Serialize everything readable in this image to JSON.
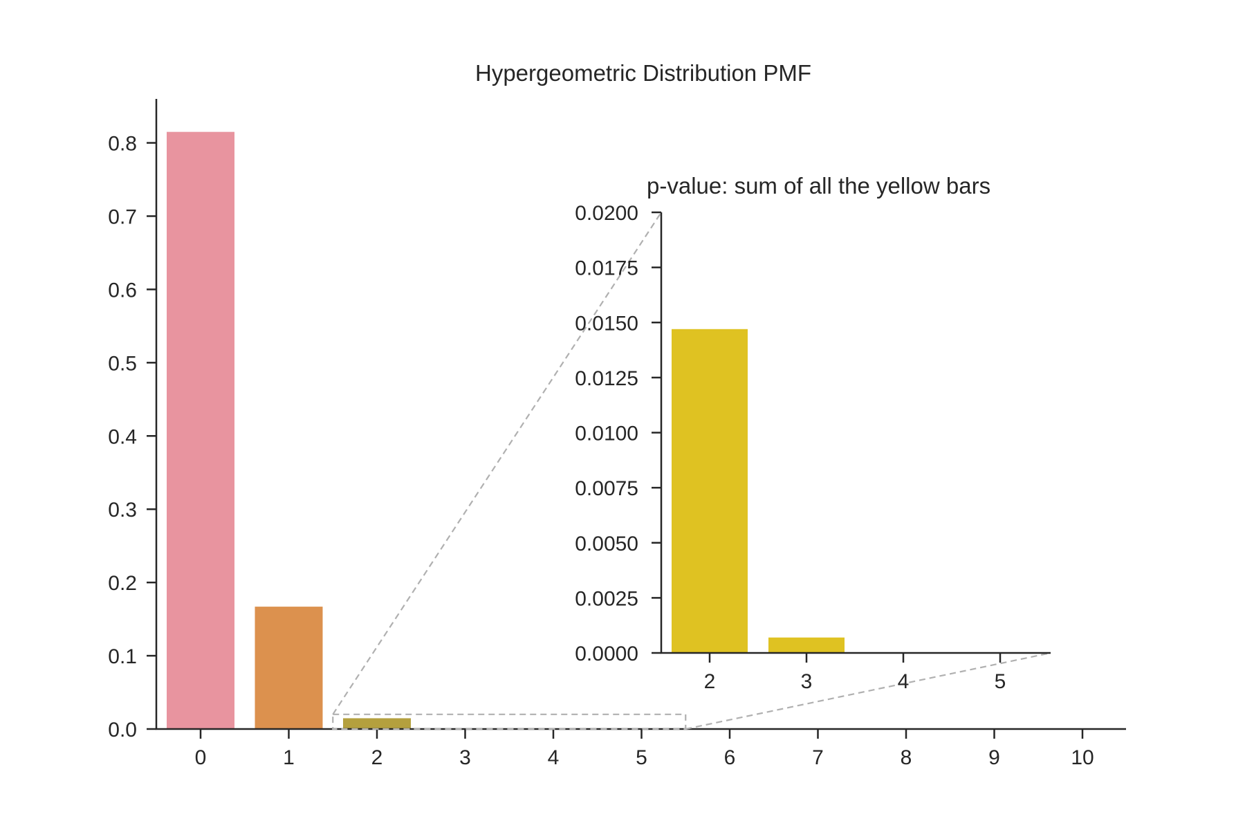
{
  "chart_data": [
    {
      "id": "main",
      "type": "bar",
      "title": "Hypergeometric Distribution PMF",
      "xlabel": "",
      "ylabel": "",
      "categories": [
        "0",
        "1",
        "2",
        "3",
        "4",
        "5",
        "6",
        "7",
        "8",
        "9",
        "10"
      ],
      "values": [
        0.815,
        0.167,
        0.0147,
        0.0007,
        0.0,
        0.0,
        0.0,
        0.0,
        0.0,
        0.0,
        0.0
      ],
      "colors": [
        "#e8949f",
        "#dc914e",
        "#b4a03e",
        "#a6a83a",
        "#8fb03a",
        "#5fb446",
        "#3db47f",
        "#3aa9a0",
        "#3ea5c2",
        "#7b9ee6",
        "#c48fe8"
      ],
      "ylim": [
        0,
        0.86
      ],
      "yticks": [
        0.0,
        0.1,
        0.2,
        0.3,
        0.4,
        0.5,
        0.6,
        0.7,
        0.8
      ],
      "ytick_labels": [
        "0.0",
        "0.1",
        "0.2",
        "0.3",
        "0.4",
        "0.5",
        "0.6",
        "0.7",
        "0.8"
      ],
      "zoom_region": {
        "x": [
          1.5,
          5.5
        ],
        "y": [
          0,
          0.02
        ]
      }
    },
    {
      "id": "inset",
      "type": "bar",
      "title": "p-value: sum of all the yellow bars",
      "xlabel": "",
      "ylabel": "",
      "categories": [
        "2",
        "3",
        "4",
        "5"
      ],
      "values": [
        0.0147,
        0.0007,
        0.0,
        0.0
      ],
      "color": "#dfc222",
      "ylim": [
        0,
        0.02
      ],
      "yticks": [
        0.0,
        0.0025,
        0.005,
        0.0075,
        0.01,
        0.0125,
        0.015,
        0.0175,
        0.02
      ],
      "ytick_labels": [
        "0.0000",
        "0.0025",
        "0.0050",
        "0.0075",
        "0.0100",
        "0.0125",
        "0.0150",
        "0.0175",
        "0.0200"
      ]
    }
  ]
}
